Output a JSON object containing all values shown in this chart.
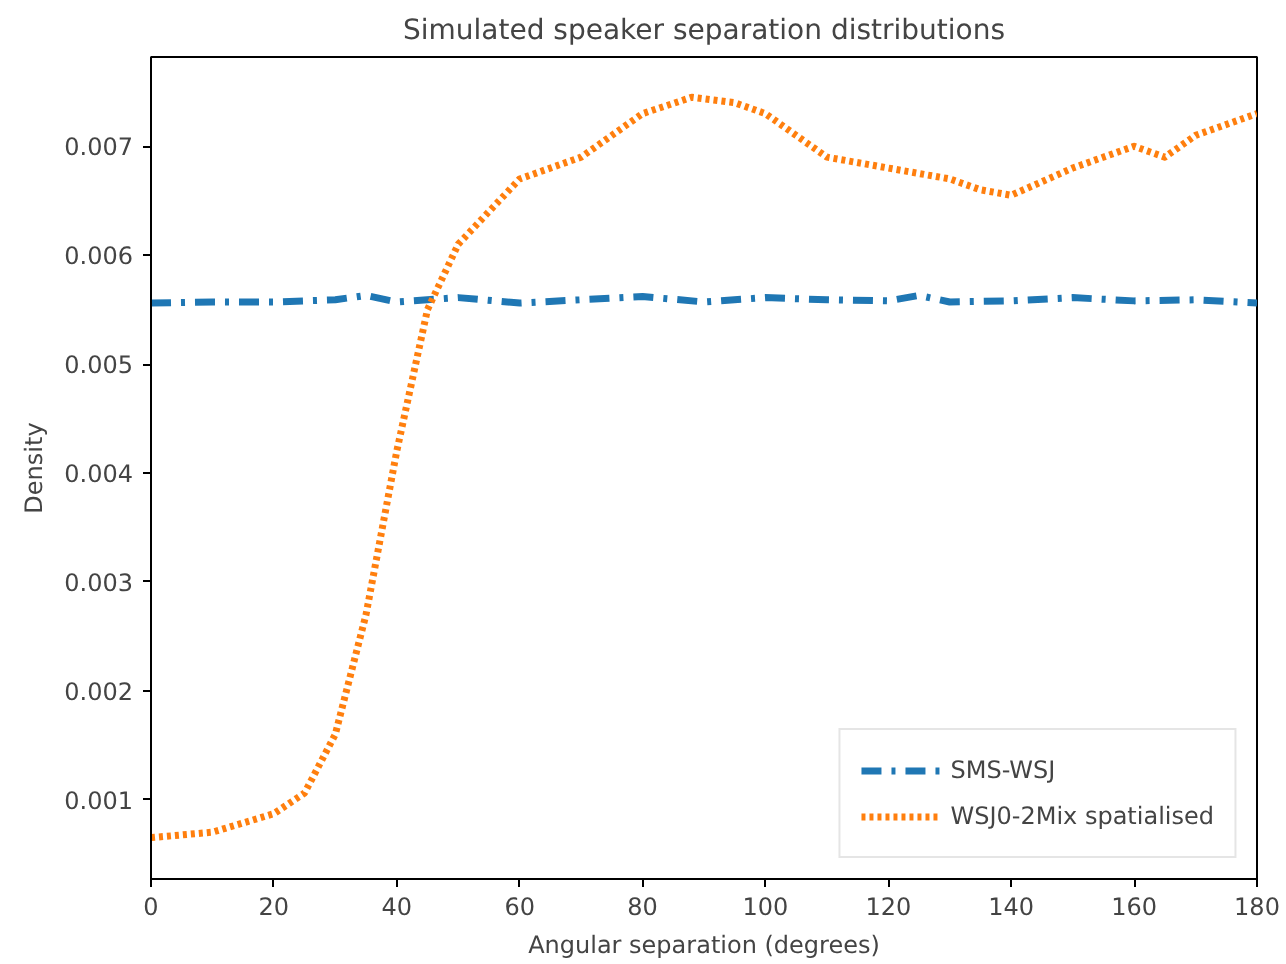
{
  "chart_data": {
    "type": "line",
    "title": "Simulated speaker separation distributions",
    "xlabel": "Angular separation (degrees)",
    "ylabel": "Density",
    "xlim": [
      0,
      180
    ],
    "xticks": [
      0,
      20,
      40,
      60,
      80,
      100,
      120,
      140,
      160,
      180
    ],
    "ylim": [
      0.00027,
      0.00782
    ],
    "yticks": [
      0.001,
      0.002,
      0.003,
      0.004,
      0.005,
      0.006,
      0.007
    ],
    "grid": false,
    "legend": "bottom right",
    "marker": "none",
    "series": [
      {
        "name": "SMS-WSJ",
        "color": "#1f77b4",
        "line_style": "dashdot",
        "x": [
          0,
          10,
          20,
          30,
          35,
          40,
          50,
          60,
          70,
          80,
          90,
          100,
          110,
          120,
          125,
          130,
          140,
          150,
          160,
          170,
          180
        ],
        "values": [
          0.00556,
          0.00557,
          0.00557,
          0.00559,
          0.00563,
          0.00557,
          0.00561,
          0.00556,
          0.00559,
          0.00562,
          0.00557,
          0.00561,
          0.00559,
          0.00558,
          0.00563,
          0.00557,
          0.00558,
          0.00561,
          0.00558,
          0.00559,
          0.00556
        ]
      },
      {
        "name": "WSJ0-2Mix spatialised",
        "color": "#ff7f0e",
        "line_style": "dotted",
        "x": [
          0,
          10,
          20,
          25,
          30,
          35,
          40,
          45,
          50,
          55,
          60,
          70,
          80,
          88,
          95,
          100,
          110,
          120,
          130,
          135,
          140,
          150,
          160,
          165,
          170,
          180
        ],
        "values": [
          0.00065,
          0.0007,
          0.00087,
          0.00106,
          0.0016,
          0.0027,
          0.0042,
          0.0055,
          0.0061,
          0.0064,
          0.0067,
          0.0069,
          0.0073,
          0.00745,
          0.0074,
          0.0073,
          0.0069,
          0.0068,
          0.0067,
          0.0066,
          0.00655,
          0.0068,
          0.007,
          0.0069,
          0.0071,
          0.0073
        ]
      }
    ]
  }
}
